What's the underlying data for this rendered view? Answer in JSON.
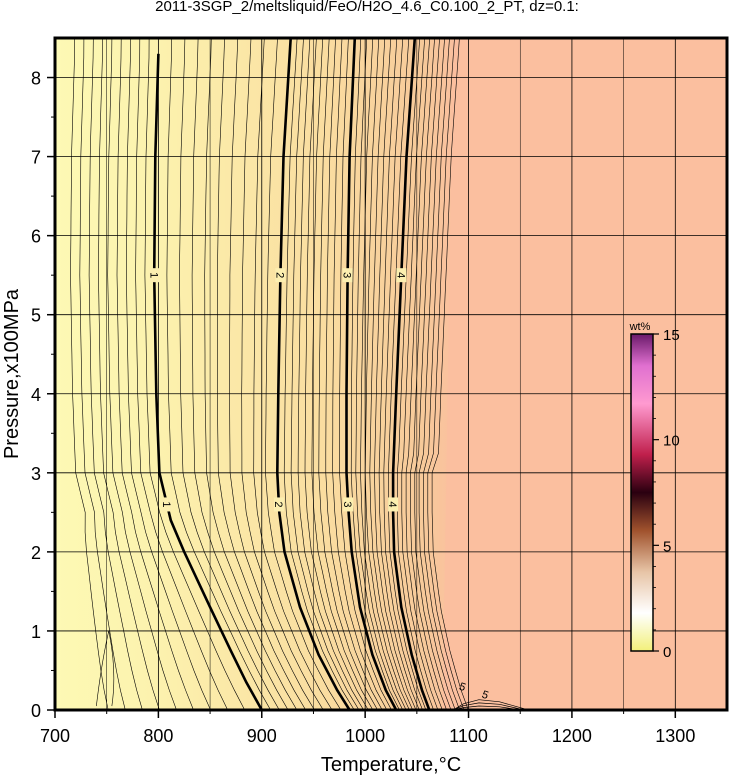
{
  "title": "2011-3SGP_2/meltsliquid/FeO/H2O_4.6_C0.100_2_PT, dz=0.1:",
  "chart_data": {
    "type": "heatmap",
    "xlabel": "Temperature,°C",
    "ylabel": "Pressure,x100MPa",
    "xlim": [
      700,
      1350
    ],
    "ylim": [
      0,
      8.5
    ],
    "xticks": [
      "700",
      "800",
      "900",
      "1000",
      "1100",
      "1200",
      "1300"
    ],
    "yticks": [
      "0",
      "1",
      "2",
      "3",
      "4",
      "5",
      "6",
      "7",
      "8"
    ],
    "grid": true,
    "colorbar": {
      "label": "wt%",
      "range": [
        0,
        15
      ],
      "ticks": [
        "0",
        "5",
        "10",
        "15"
      ],
      "placement": "right-inside"
    },
    "colors": {
      "low": "#fdf9b4",
      "high": "#fbbf9f",
      "line": "#000000"
    },
    "major_contours": [
      {
        "label": "1",
        "points": [
          [
            800,
            8.3
          ],
          [
            797,
            7.0
          ],
          [
            796,
            5.5
          ],
          [
            798,
            4.0
          ],
          [
            801,
            3.0
          ],
          [
            812,
            2.4
          ],
          [
            825,
            2.0
          ],
          [
            850,
            1.3
          ],
          [
            870,
            0.75
          ],
          [
            885,
            0.35
          ],
          [
            900,
            0
          ]
        ]
      },
      {
        "label": "2",
        "points": [
          [
            928,
            8.5
          ],
          [
            921,
            7.0
          ],
          [
            918,
            5.5
          ],
          [
            916,
            4.0
          ],
          [
            915,
            3.0
          ],
          [
            917,
            2.5
          ],
          [
            922,
            2.0
          ],
          [
            937,
            1.3
          ],
          [
            955,
            0.7
          ],
          [
            973,
            0.25
          ],
          [
            985,
            0
          ]
        ]
      },
      {
        "label": "3",
        "points": [
          [
            990,
            8.5
          ],
          [
            985,
            7.0
          ],
          [
            983,
            5.5
          ],
          [
            982,
            4.0
          ],
          [
            982,
            3.0
          ],
          [
            984,
            2.5
          ],
          [
            987,
            2.0
          ],
          [
            995,
            1.3
          ],
          [
            1007,
            0.7
          ],
          [
            1020,
            0.25
          ],
          [
            1030,
            0
          ]
        ]
      },
      {
        "label": "4",
        "points": [
          [
            1048,
            8.5
          ],
          [
            1040,
            7.0
          ],
          [
            1035,
            5.5
          ],
          [
            1030,
            4.0
          ],
          [
            1027,
            3.0
          ],
          [
            1027,
            2.5
          ],
          [
            1028,
            2.0
          ],
          [
            1035,
            1.3
          ],
          [
            1045,
            0.7
          ],
          [
            1055,
            0.25
          ],
          [
            1062,
            0
          ]
        ]
      }
    ],
    "contour_labels_lower": [
      "1",
      "2",
      "3",
      "4"
    ],
    "inset_labels": [
      "5",
      "5"
    ]
  }
}
